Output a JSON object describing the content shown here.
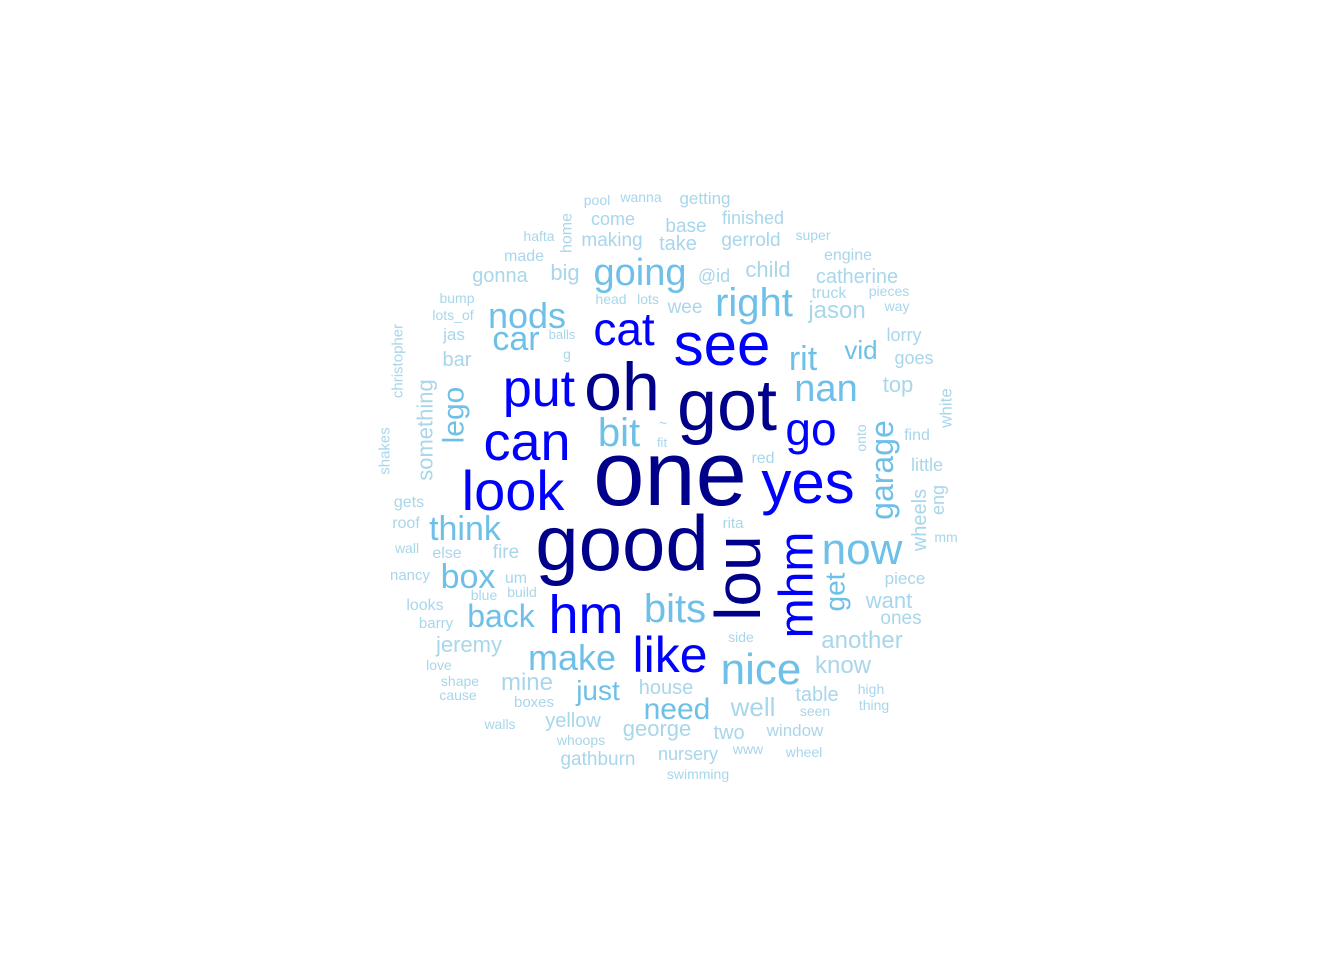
{
  "chart_data": {
    "type": "wordcloud",
    "colors": {
      "tier1": "#00008B",
      "tier2": "#0000FF",
      "tier3": "#6EC0E8",
      "tier4": "#A8D6EB"
    },
    "words": [
      {
        "text": "one",
        "tier": 1
      },
      {
        "text": "good",
        "tier": 1
      },
      {
        "text": "got",
        "tier": 1
      },
      {
        "text": "oh",
        "tier": 1
      },
      {
        "text": "lou",
        "tier": 1
      },
      {
        "text": "see",
        "tier": 2
      },
      {
        "text": "look",
        "tier": 2
      },
      {
        "text": "yes",
        "tier": 2
      },
      {
        "text": "can",
        "tier": 2
      },
      {
        "text": "hm",
        "tier": 2
      },
      {
        "text": "put",
        "tier": 2
      },
      {
        "text": "mhm",
        "tier": 2
      },
      {
        "text": "like",
        "tier": 2
      },
      {
        "text": "cat",
        "tier": 2
      },
      {
        "text": "go",
        "tier": 2
      },
      {
        "text": "nice",
        "tier": 3
      },
      {
        "text": "now",
        "tier": 3
      },
      {
        "text": "bits",
        "tier": 3
      },
      {
        "text": "going",
        "tier": 3
      },
      {
        "text": "right",
        "tier": 3
      },
      {
        "text": "bit",
        "tier": 3
      },
      {
        "text": "nan",
        "tier": 3
      },
      {
        "text": "make",
        "tier": 3
      },
      {
        "text": "nods",
        "tier": 3
      },
      {
        "text": "rit",
        "tier": 3
      },
      {
        "text": "garage",
        "tier": 3
      },
      {
        "text": "think",
        "tier": 3
      },
      {
        "text": "box",
        "tier": 3
      },
      {
        "text": "car",
        "tier": 3
      },
      {
        "text": "back",
        "tier": 3
      },
      {
        "text": "need",
        "tier": 3
      },
      {
        "text": "lego",
        "tier": 3
      },
      {
        "text": "get",
        "tier": 3
      },
      {
        "text": "just",
        "tier": 3
      },
      {
        "text": "vid",
        "tier": 3
      },
      {
        "text": "well",
        "tier": 4
      },
      {
        "text": "mine",
        "tier": 4
      },
      {
        "text": "another",
        "tier": 4
      },
      {
        "text": "jason",
        "tier": 4
      },
      {
        "text": "know",
        "tier": 4
      },
      {
        "text": "george",
        "tier": 4
      },
      {
        "text": "want",
        "tier": 4
      },
      {
        "text": "jeremy",
        "tier": 4
      },
      {
        "text": "something",
        "tier": 4
      },
      {
        "text": "yellow",
        "tier": 4
      },
      {
        "text": "top",
        "tier": 4
      },
      {
        "text": "big",
        "tier": 4
      },
      {
        "text": "child",
        "tier": 4
      },
      {
        "text": "table",
        "tier": 4
      },
      {
        "text": "bar",
        "tier": 4
      },
      {
        "text": "wheels",
        "tier": 4
      },
      {
        "text": "house",
        "tier": 4
      },
      {
        "text": "gonna",
        "tier": 4
      },
      {
        "text": "catherine",
        "tier": 4
      },
      {
        "text": "making",
        "tier": 4
      },
      {
        "text": "take",
        "tier": 4
      },
      {
        "text": "gerrold",
        "tier": 4
      },
      {
        "text": "two",
        "tier": 4
      },
      {
        "text": "eng",
        "tier": 4
      },
      {
        "text": "gathburn",
        "tier": 4
      },
      {
        "text": "ones",
        "tier": 4
      },
      {
        "text": "wee",
        "tier": 4
      },
      {
        "text": "fire",
        "tier": 4
      },
      {
        "text": "@id",
        "tier": 4
      },
      {
        "text": "base",
        "tier": 4
      },
      {
        "text": "little",
        "tier": 4
      },
      {
        "text": "come",
        "tier": 4
      },
      {
        "text": "finished",
        "tier": 4
      },
      {
        "text": "getting",
        "tier": 4
      },
      {
        "text": "nursery",
        "tier": 4
      },
      {
        "text": "goes",
        "tier": 4
      },
      {
        "text": "lorry",
        "tier": 4
      },
      {
        "text": "piece",
        "tier": 4
      },
      {
        "text": "window",
        "tier": 4
      },
      {
        "text": "made",
        "tier": 4
      },
      {
        "text": "white",
        "tier": 4
      },
      {
        "text": "engine",
        "tier": 4
      },
      {
        "text": "jas",
        "tier": 4
      },
      {
        "text": "else",
        "tier": 4
      },
      {
        "text": "gets",
        "tier": 4
      },
      {
        "text": "looks",
        "tier": 4
      },
      {
        "text": "um",
        "tier": 4
      },
      {
        "text": "find",
        "tier": 4
      },
      {
        "text": "home",
        "tier": 4
      },
      {
        "text": "christopher",
        "tier": 4
      },
      {
        "text": "shakes",
        "tier": 4
      },
      {
        "text": "truck",
        "tier": 4
      },
      {
        "text": "roof",
        "tier": 4
      },
      {
        "text": "red",
        "tier": 4
      },
      {
        "text": "rita",
        "tier": 4
      },
      {
        "text": "nancy",
        "tier": 4
      },
      {
        "text": "barry",
        "tier": 4
      },
      {
        "text": "boxes",
        "tier": 4
      },
      {
        "text": "super",
        "tier": 4
      },
      {
        "text": "way",
        "tier": 4
      },
      {
        "text": "pieces",
        "tier": 4
      },
      {
        "text": "head",
        "tier": 4
      },
      {
        "text": "lots",
        "tier": 4
      },
      {
        "text": "lots_of",
        "tier": 4
      },
      {
        "text": "bump",
        "tier": 4
      },
      {
        "text": "wall",
        "tier": 4
      },
      {
        "text": "build",
        "tier": 4
      },
      {
        "text": "blue",
        "tier": 4
      },
      {
        "text": "high",
        "tier": 4
      },
      {
        "text": "thing",
        "tier": 4
      },
      {
        "text": "seen",
        "tier": 4
      },
      {
        "text": "side",
        "tier": 4
      },
      {
        "text": "mm",
        "tier": 4
      },
      {
        "text": "onto",
        "tier": 4
      },
      {
        "text": "love",
        "tier": 4
      },
      {
        "text": "shape",
        "tier": 4
      },
      {
        "text": "cause",
        "tier": 4
      },
      {
        "text": "walls",
        "tier": 4
      },
      {
        "text": "whoops",
        "tier": 4
      },
      {
        "text": "www",
        "tier": 4
      },
      {
        "text": "wheel",
        "tier": 4
      },
      {
        "text": "swimming",
        "tier": 4
      },
      {
        "text": "pool",
        "tier": 4
      },
      {
        "text": "wanna",
        "tier": 4
      },
      {
        "text": "hafta",
        "tier": 4
      },
      {
        "text": "balls",
        "tier": 4
      },
      {
        "text": "g",
        "tier": 4
      },
      {
        "text": "~",
        "tier": 4
      },
      {
        "text": "fit",
        "tier": 4
      }
    ]
  }
}
